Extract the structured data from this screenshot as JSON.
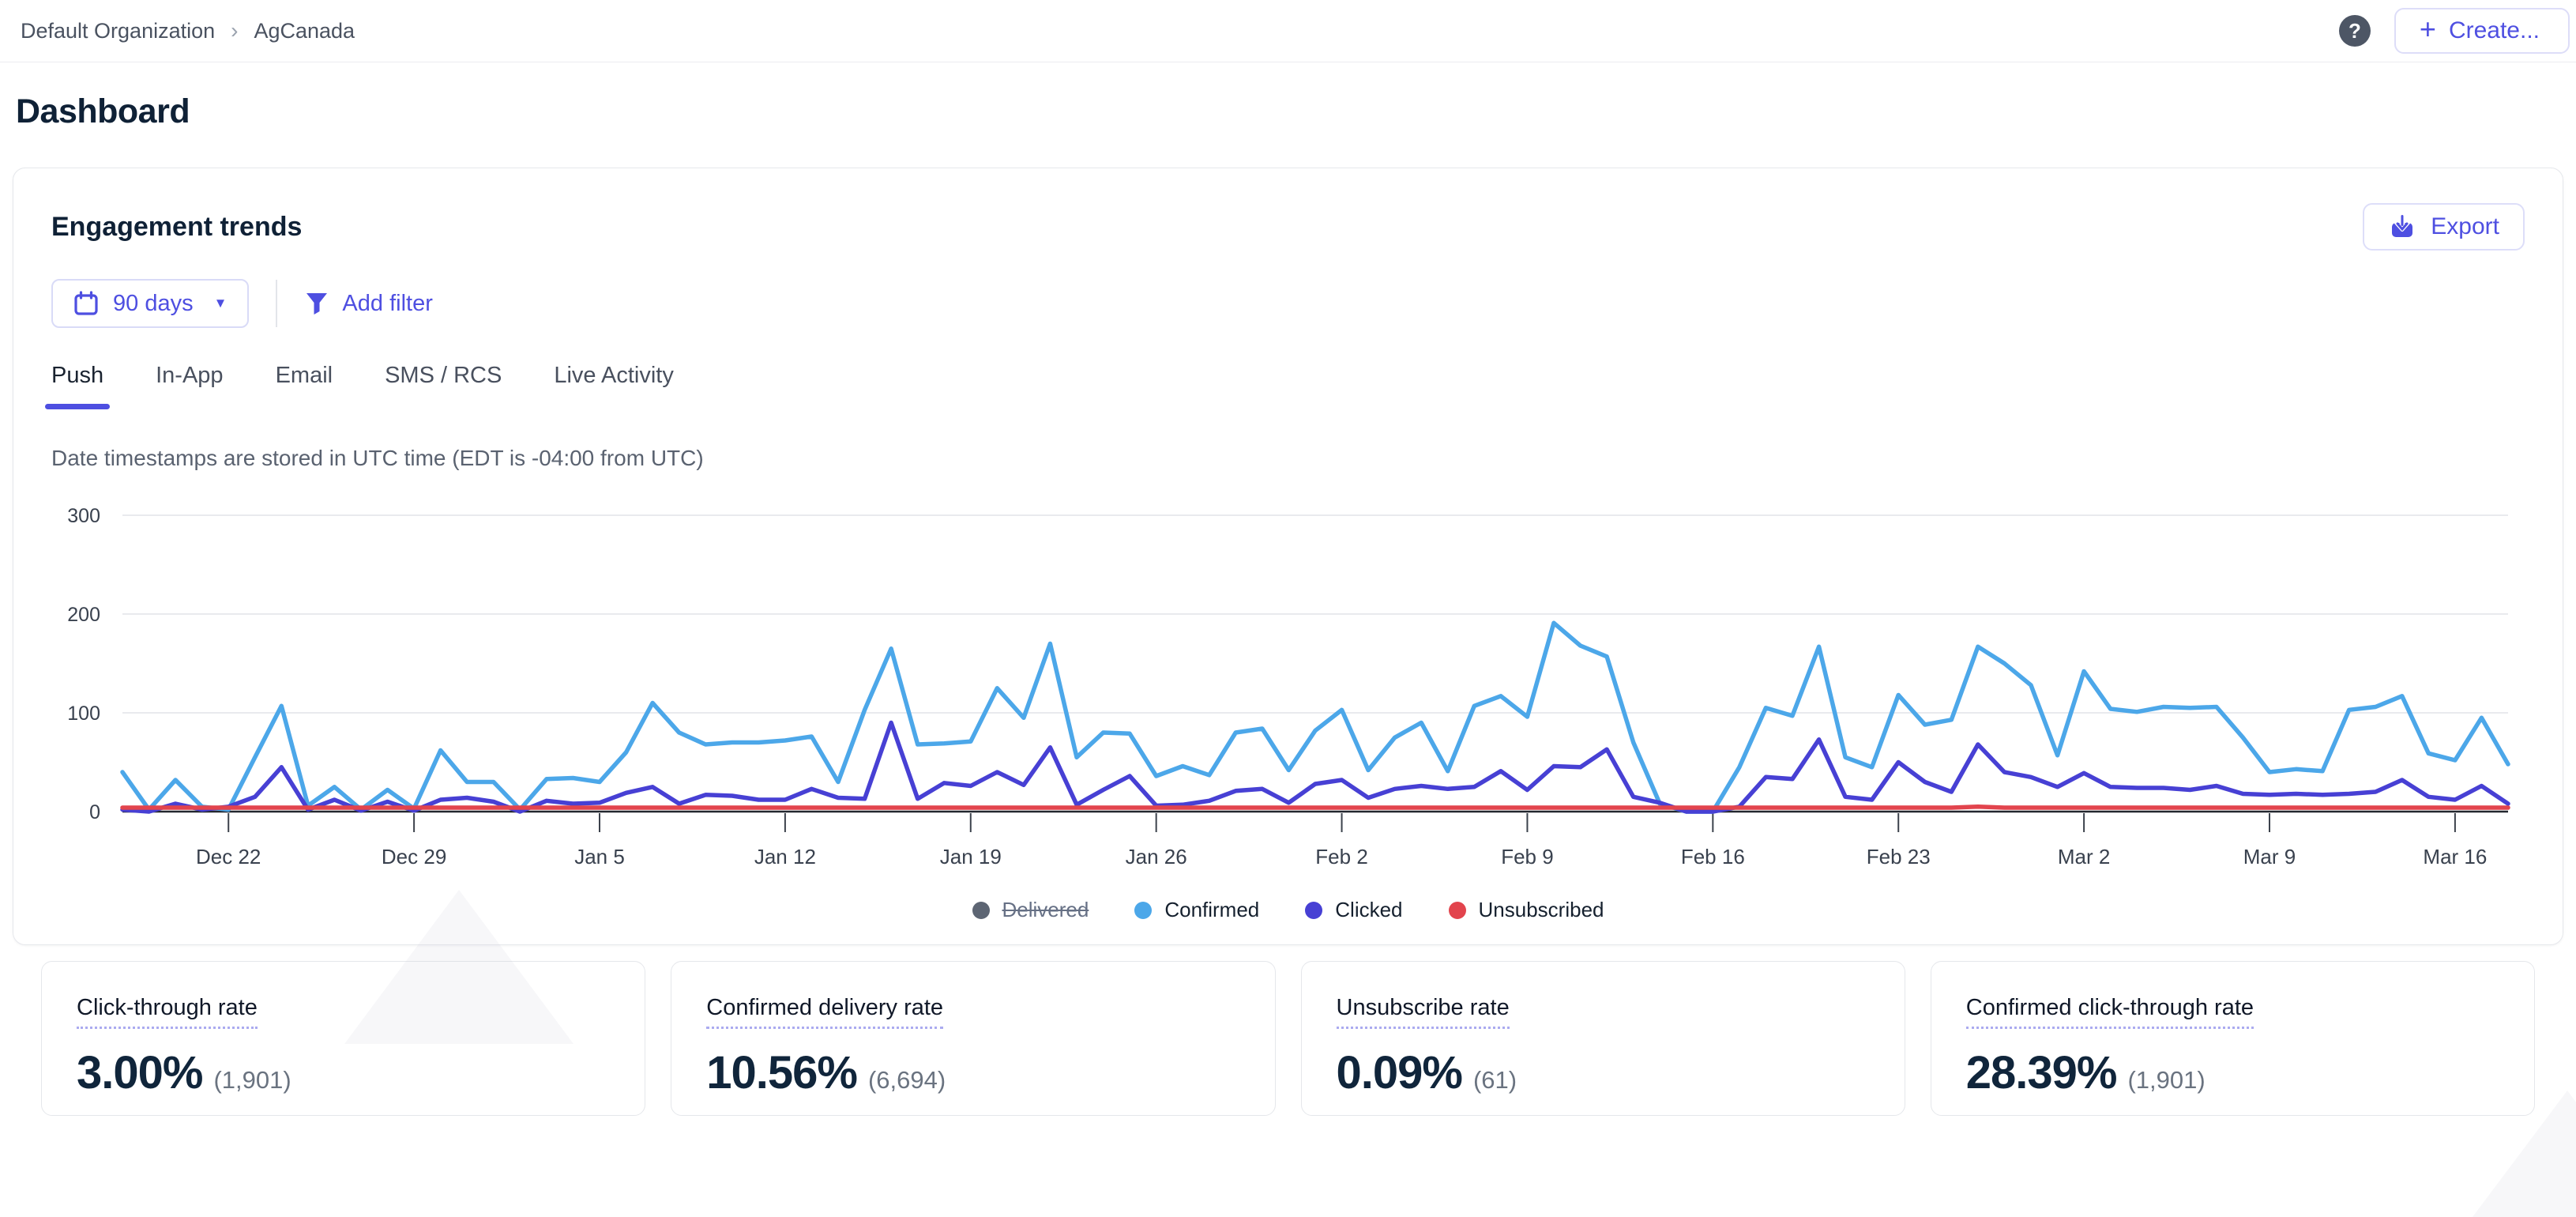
{
  "topbar": {
    "breadcrumb": {
      "org": "Default Organization",
      "app": "AgCanada",
      "separator": "›"
    },
    "help_label": "?",
    "create_label": "Create...",
    "create_plus": "+"
  },
  "page": {
    "title": "Dashboard"
  },
  "panel": {
    "title": "Engagement trends",
    "export_label": "Export",
    "date_range_label": "90 days",
    "add_filter_label": "Add filter",
    "tabs": [
      {
        "label": "Push",
        "active": true
      },
      {
        "label": "In-App",
        "active": false
      },
      {
        "label": "Email",
        "active": false
      },
      {
        "label": "SMS / RCS",
        "active": false
      },
      {
        "label": "Live Activity",
        "active": false
      }
    ],
    "utc_note": "Date timestamps are stored in UTC time (EDT is -04:00 from UTC)"
  },
  "chart_data": {
    "type": "line",
    "title": "Engagement trends",
    "xlabel": "",
    "ylabel": "",
    "ylim": [
      0,
      300
    ],
    "yticks": [
      0,
      100,
      200,
      300
    ],
    "grid": "horizontal",
    "legend_position": "bottom",
    "tick_indices": [
      4,
      11,
      18,
      25,
      32,
      39,
      46,
      53,
      60,
      67,
      74,
      81,
      88
    ],
    "tick_labels": [
      "Dec 22",
      "Dec 29",
      "Jan 5",
      "Jan 12",
      "Jan 19",
      "Jan 26",
      "Feb 2",
      "Feb 9",
      "Feb 16",
      "Feb 23",
      "Mar 2",
      "Mar 9",
      "Mar 16"
    ],
    "dates": [
      "Dec 18",
      "Dec 19",
      "Dec 20",
      "Dec 21",
      "Dec 22",
      "Dec 23",
      "Dec 24",
      "Dec 25",
      "Dec 26",
      "Dec 27",
      "Dec 28",
      "Dec 29",
      "Dec 30",
      "Dec 31",
      "Jan 1",
      "Jan 2",
      "Jan 3",
      "Jan 4",
      "Jan 5",
      "Jan 6",
      "Jan 7",
      "Jan 8",
      "Jan 9",
      "Jan 10",
      "Jan 11",
      "Jan 12",
      "Jan 13",
      "Jan 14",
      "Jan 15",
      "Jan 16",
      "Jan 17",
      "Jan 18",
      "Jan 19",
      "Jan 20",
      "Jan 21",
      "Jan 22",
      "Jan 23",
      "Jan 24",
      "Jan 25",
      "Jan 26",
      "Jan 27",
      "Jan 28",
      "Jan 29",
      "Jan 30",
      "Jan 31",
      "Feb 1",
      "Feb 2",
      "Feb 3",
      "Feb 4",
      "Feb 5",
      "Feb 6",
      "Feb 7",
      "Feb 8",
      "Feb 9",
      "Feb 10",
      "Feb 11",
      "Feb 12",
      "Feb 13",
      "Feb 14",
      "Feb 15",
      "Feb 16",
      "Feb 17",
      "Feb 18",
      "Feb 19",
      "Feb 20",
      "Feb 21",
      "Feb 22",
      "Feb 23",
      "Feb 24",
      "Feb 25",
      "Feb 26",
      "Feb 27",
      "Feb 28",
      "Mar 1",
      "Mar 2",
      "Mar 3",
      "Mar 4",
      "Mar 5",
      "Mar 6",
      "Mar 7",
      "Mar 8",
      "Mar 9",
      "Mar 10",
      "Mar 11",
      "Mar 12",
      "Mar 13",
      "Mar 14",
      "Mar 15",
      "Mar 16",
      "Mar 17",
      "Mar 18"
    ],
    "series": [
      {
        "name": "Delivered",
        "color": "#5D6573",
        "hidden": true,
        "values": null
      },
      {
        "name": "Confirmed",
        "color": "#4CA7E9",
        "hidden": false,
        "values": [
          40,
          2,
          32,
          5,
          2,
          55,
          107,
          6,
          25,
          2,
          22,
          3,
          62,
          30,
          30,
          2,
          33,
          34,
          30,
          60,
          110,
          80,
          68,
          70,
          70,
          72,
          76,
          30,
          103,
          165,
          68,
          69,
          71,
          125,
          95,
          170,
          55,
          80,
          79,
          36,
          46,
          37,
          80,
          84,
          42,
          82,
          103,
          42,
          75,
          90,
          41,
          107,
          117,
          96,
          191,
          168,
          157,
          70,
          8,
          0,
          0,
          45,
          105,
          97,
          167,
          55,
          45,
          118,
          88,
          93,
          167,
          150,
          128,
          57,
          142,
          104,
          101,
          106,
          105,
          106,
          75,
          40,
          43,
          41,
          103,
          106,
          117,
          59,
          52,
          95,
          48
        ]
      },
      {
        "name": "Clicked",
        "color": "#4740D4",
        "hidden": false,
        "values": [
          2,
          0,
          8,
          2,
          5,
          15,
          45,
          2,
          12,
          1,
          10,
          1,
          12,
          14,
          10,
          0,
          11,
          8,
          9,
          19,
          25,
          8,
          17,
          16,
          12,
          12,
          23,
          14,
          13,
          90,
          13,
          29,
          26,
          40,
          27,
          65,
          7,
          22,
          36,
          6,
          7,
          11,
          21,
          23,
          9,
          28,
          32,
          14,
          23,
          26,
          23,
          25,
          41,
          22,
          46,
          45,
          63,
          15,
          9,
          0,
          0,
          5,
          35,
          33,
          73,
          15,
          12,
          50,
          30,
          20,
          68,
          40,
          35,
          25,
          39,
          25,
          24,
          24,
          22,
          26,
          18,
          17,
          18,
          17,
          18,
          20,
          32,
          15,
          12,
          26,
          8
        ]
      },
      {
        "name": "Unsubscribed",
        "color": "#E2444D",
        "hidden": false,
        "values": [
          1,
          0,
          1,
          0,
          0,
          1,
          2,
          0,
          1,
          0,
          1,
          0,
          1,
          1,
          0,
          0,
          1,
          1,
          1,
          2,
          4,
          1,
          1,
          1,
          1,
          1,
          1,
          1,
          1,
          2,
          1,
          1,
          1,
          1,
          1,
          2,
          0,
          1,
          1,
          0,
          1,
          1,
          1,
          1,
          0,
          1,
          1,
          1,
          1,
          1,
          1,
          1,
          2,
          1,
          3,
          2,
          2,
          1,
          0,
          0,
          0,
          1,
          2,
          2,
          4,
          1,
          1,
          2,
          1,
          1,
          5,
          1,
          1,
          1,
          3,
          1,
          1,
          1,
          1,
          1,
          1,
          1,
          1,
          1,
          2,
          1,
          2,
          1,
          1,
          1,
          0
        ]
      }
    ],
    "axis_color": "#23272F",
    "gridline_color": "#E9EAEE",
    "tick_text_color": "#39414E"
  },
  "stats": [
    {
      "label": "Click-through rate",
      "value": "3.00%",
      "count": "(1,901)"
    },
    {
      "label": "Confirmed delivery rate",
      "value": "10.56%",
      "count": "(6,694)"
    },
    {
      "label": "Unsubscribe rate",
      "value": "0.09%",
      "count": "(61)"
    },
    {
      "label": "Confirmed click-through rate",
      "value": "28.39%",
      "count": "(1,901)"
    }
  ],
  "colors": {
    "accent": "#4E4FE1",
    "accent_border": "#DDDEF9",
    "heading": "#0F2136"
  }
}
